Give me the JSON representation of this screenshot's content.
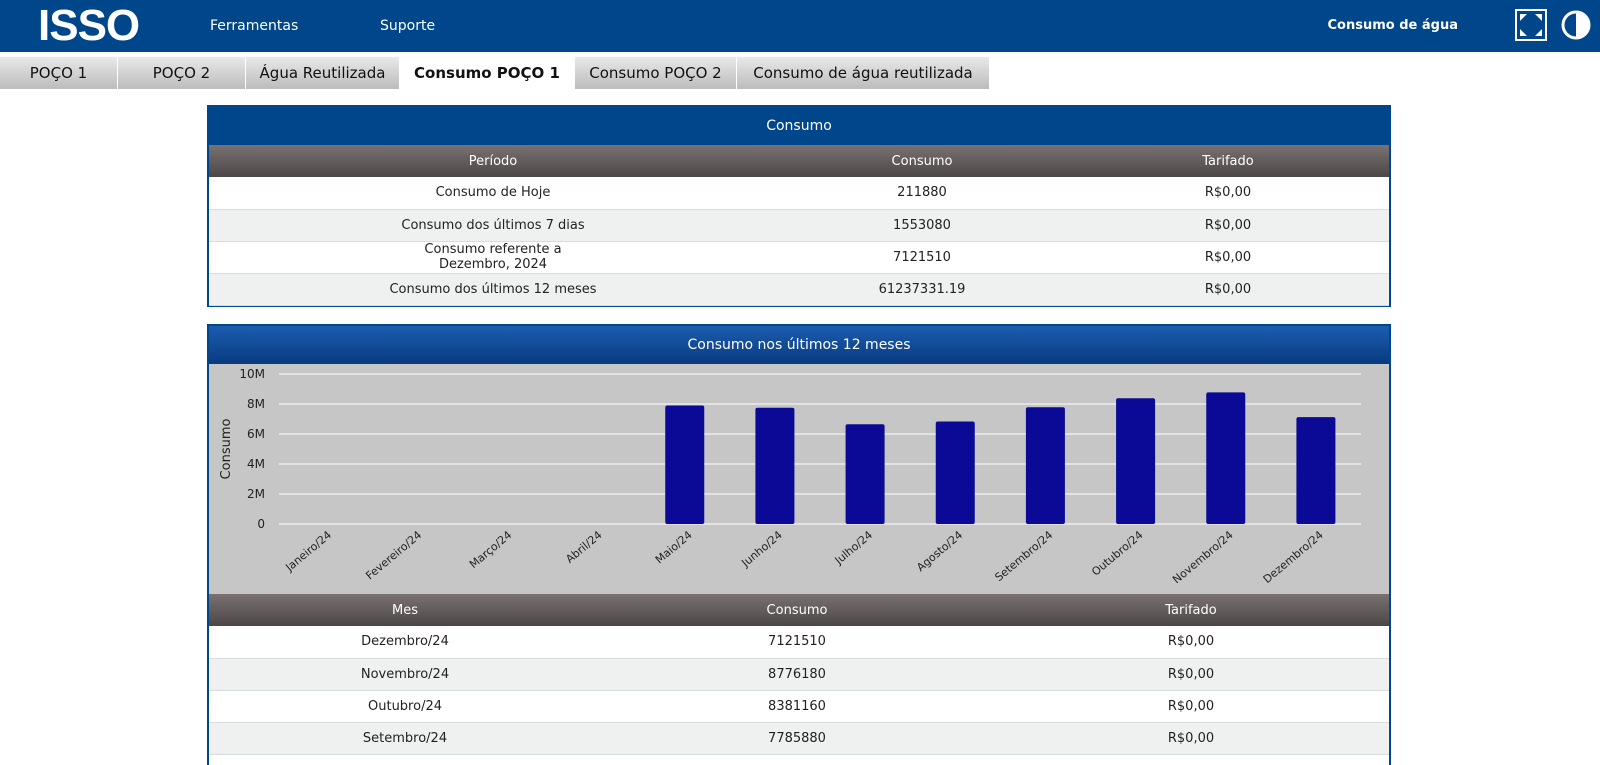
{
  "header": {
    "logo": "ISSO",
    "nav": [
      "Ferramentas",
      "Suporte"
    ],
    "page_label": "Consumo de água",
    "icons": [
      "fullscreen-icon",
      "contrast-icon"
    ]
  },
  "tabs": [
    {
      "label": "POÇO 1",
      "active": false
    },
    {
      "label": "POÇO 2",
      "active": false
    },
    {
      "label": "Água Reutilizada",
      "active": false
    },
    {
      "label": "Consumo POÇO 1",
      "active": true
    },
    {
      "label": "Consumo POÇO 2",
      "active": false
    },
    {
      "label": "Consumo de água reutilizada",
      "active": false
    }
  ],
  "consumo": {
    "title": "Consumo",
    "headers": [
      "Período",
      "Consumo",
      "Tarifado"
    ],
    "rows": [
      {
        "periodo": "Consumo de Hoje",
        "periodo2": "",
        "consumo": "211880",
        "tarifado": "R$0,00"
      },
      {
        "periodo": "Consumo dos últimos 7 dias",
        "periodo2": "",
        "consumo": "1553080",
        "tarifado": "R$0,00"
      },
      {
        "periodo": "Consumo referente a",
        "periodo2": "Dezembro, 2024",
        "consumo": "7121510",
        "tarifado": "R$0,00"
      },
      {
        "periodo": "Consumo dos últimos 12 meses",
        "periodo2": "",
        "consumo": "61237331.19",
        "tarifado": "R$0,00"
      }
    ]
  },
  "ultimos12": {
    "title": "Consumo nos últimos 12 meses",
    "headers": [
      "Mes",
      "Consumo",
      "Tarifado"
    ],
    "rows": [
      {
        "mes": "Dezembro/24",
        "consumo": "7121510",
        "tarifado": "R$0,00"
      },
      {
        "mes": "Novembro/24",
        "consumo": "8776180",
        "tarifado": "R$0,00"
      },
      {
        "mes": "Outubro/24",
        "consumo": "8381160",
        "tarifado": "R$0,00"
      },
      {
        "mes": "Setembro/24",
        "consumo": "7785880",
        "tarifado": "R$0,00"
      }
    ]
  },
  "chart_data": {
    "type": "bar",
    "title": "",
    "xlabel": "",
    "ylabel": "Consumo",
    "categories": [
      "Janeiro/24",
      "Fevereiro/24",
      "Março/24",
      "Abril/24",
      "Maio/24",
      "Junho/24",
      "Julho/24",
      "Agosto/24",
      "Setembro/24",
      "Outubro/24",
      "Novembro/24",
      "Dezembro/24"
    ],
    "values": [
      0,
      0,
      0,
      0,
      7900000,
      7750000,
      6650000,
      6830000,
      7785880,
      8381160,
      8776180,
      7121510
    ],
    "yticks": [
      "0",
      "2M",
      "4M",
      "6M",
      "8M",
      "10M"
    ],
    "ylim": [
      0,
      10000000
    ],
    "grid": true,
    "bar_color": "#0a0a96"
  }
}
